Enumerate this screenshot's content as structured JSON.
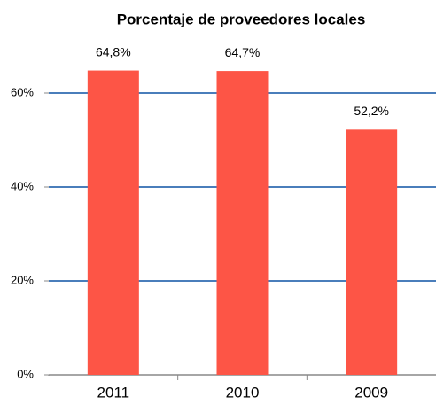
{
  "chart_data": {
    "type": "bar",
    "title": "Porcentaje de proveedores locales",
    "categories": [
      "2011",
      "2010",
      "2009"
    ],
    "values": [
      64.8,
      64.7,
      52.2
    ],
    "value_labels": [
      "64,8%",
      "64,7%",
      "52,2%"
    ],
    "color": "#fd5546",
    "ylim": [
      0,
      70
    ],
    "yticks": [
      {
        "value": 0,
        "label": "0%"
      },
      {
        "value": 20,
        "label": "20%"
      },
      {
        "value": 40,
        "label": "40%"
      },
      {
        "value": 60,
        "label": "60%"
      }
    ],
    "grid": true
  }
}
